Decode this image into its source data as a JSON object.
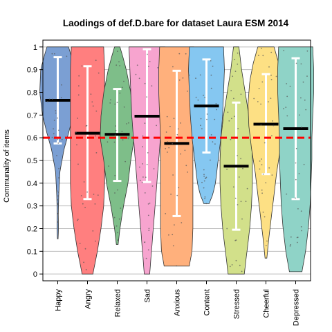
{
  "chart_data": {
    "type": "violin",
    "title": "Laodings of def.D.bare for dataset Laura ESM 2014",
    "xlabel": "",
    "ylabel": "Communality of items",
    "ylim": [
      -0.03,
      1.03
    ],
    "yticks": [
      "0",
      "0.1",
      "0.2",
      "0.3",
      "0.4",
      "0.5",
      "0.6",
      "0.7",
      "0.8",
      "0.9",
      "1"
    ],
    "grid": true,
    "reference_line": {
      "value": 0.6,
      "color": "#ff0000",
      "style": "dashed"
    },
    "categories": [
      "Happy",
      "Angry",
      "Relaxed",
      "Sad",
      "Anxious",
      "Content",
      "Stressed",
      "Cheerful",
      "Depressed"
    ],
    "series": [
      {
        "category": "Happy",
        "color": "#7b9fd3",
        "mean": 0.765,
        "sd_low": 0.575,
        "sd_high": 0.955,
        "min": 0.155,
        "max": 1.0,
        "profile": [
          [
            0.155,
            0.02
          ],
          [
            0.2,
            0.04
          ],
          [
            0.27,
            0.03
          ],
          [
            0.35,
            0.06
          ],
          [
            0.45,
            0.12
          ],
          [
            0.55,
            0.35
          ],
          [
            0.62,
            0.6
          ],
          [
            0.7,
            0.85
          ],
          [
            0.8,
            1.0
          ],
          [
            0.9,
            0.95
          ],
          [
            0.96,
            0.75
          ],
          [
            1.0,
            0.6
          ]
        ]
      },
      {
        "category": "Angry",
        "color": "#ff7f7f",
        "mean": 0.62,
        "sd_low": 0.33,
        "sd_high": 0.915,
        "min": 0.0,
        "max": 1.0,
        "profile": [
          [
            0.0,
            0.3
          ],
          [
            0.1,
            0.55
          ],
          [
            0.2,
            0.75
          ],
          [
            0.3,
            0.9
          ],
          [
            0.4,
            0.95
          ],
          [
            0.5,
            0.95
          ],
          [
            0.6,
            0.95
          ],
          [
            0.7,
            0.95
          ],
          [
            0.8,
            0.95
          ],
          [
            0.9,
            0.95
          ],
          [
            1.0,
            0.9
          ]
        ]
      },
      {
        "category": "Relaxed",
        "color": "#7ebe89",
        "mean": 0.615,
        "sd_low": 0.41,
        "sd_high": 0.815,
        "min": 0.13,
        "max": 1.0,
        "profile": [
          [
            0.13,
            0.05
          ],
          [
            0.2,
            0.15
          ],
          [
            0.3,
            0.35
          ],
          [
            0.4,
            0.6
          ],
          [
            0.5,
            0.75
          ],
          [
            0.6,
            0.95
          ],
          [
            0.7,
            0.9
          ],
          [
            0.8,
            0.75
          ],
          [
            0.9,
            0.5
          ],
          [
            0.96,
            0.3
          ],
          [
            1.0,
            0.15
          ]
        ]
      },
      {
        "category": "Sad",
        "color": "#f7a4cf",
        "mean": 0.695,
        "sd_low": 0.405,
        "sd_high": 0.99,
        "min": 0.0,
        "max": 1.0,
        "profile": [
          [
            0.0,
            0.15
          ],
          [
            0.1,
            0.25
          ],
          [
            0.2,
            0.35
          ],
          [
            0.3,
            0.45
          ],
          [
            0.4,
            0.55
          ],
          [
            0.5,
            0.65
          ],
          [
            0.6,
            0.75
          ],
          [
            0.7,
            0.85
          ],
          [
            0.8,
            0.9
          ],
          [
            0.9,
            0.95
          ],
          [
            1.0,
            1.0
          ]
        ]
      },
      {
        "category": "Anxious",
        "color": "#ffb07c",
        "mean": 0.575,
        "sd_low": 0.255,
        "sd_high": 0.895,
        "min": 0.035,
        "max": 1.0,
        "profile": [
          [
            0.035,
            0.7
          ],
          [
            0.1,
            0.85
          ],
          [
            0.2,
            0.9
          ],
          [
            0.3,
            0.9
          ],
          [
            0.4,
            0.9
          ],
          [
            0.5,
            0.9
          ],
          [
            0.6,
            0.9
          ],
          [
            0.7,
            0.95
          ],
          [
            0.8,
            1.0
          ],
          [
            0.9,
            1.0
          ],
          [
            1.0,
            0.95
          ]
        ]
      },
      {
        "category": "Content",
        "color": "#85c7f1",
        "mean": 0.74,
        "sd_low": 0.535,
        "sd_high": 0.945,
        "min": 0.31,
        "max": 1.0,
        "profile": [
          [
            0.31,
            0.15
          ],
          [
            0.35,
            0.35
          ],
          [
            0.4,
            0.5
          ],
          [
            0.5,
            0.65
          ],
          [
            0.6,
            0.8
          ],
          [
            0.7,
            0.9
          ],
          [
            0.8,
            0.95
          ],
          [
            0.9,
            1.0
          ],
          [
            1.0,
            0.95
          ]
        ]
      },
      {
        "category": "Stressed",
        "color": "#d2e08a",
        "mean": 0.475,
        "sd_low": 0.195,
        "sd_high": 0.755,
        "min": 0.0,
        "max": 1.0,
        "profile": [
          [
            0.0,
            0.45
          ],
          [
            0.1,
            0.6
          ],
          [
            0.2,
            0.75
          ],
          [
            0.3,
            0.85
          ],
          [
            0.4,
            0.9
          ],
          [
            0.5,
            0.9
          ],
          [
            0.6,
            0.85
          ],
          [
            0.7,
            0.7
          ],
          [
            0.8,
            0.5
          ],
          [
            0.9,
            0.3
          ],
          [
            1.0,
            0.15
          ]
        ]
      },
      {
        "category": "Cheerful",
        "color": "#fde084",
        "mean": 0.66,
        "sd_low": 0.44,
        "sd_high": 0.88,
        "min": 0.07,
        "max": 1.0,
        "profile": [
          [
            0.07,
            0.05
          ],
          [
            0.15,
            0.15
          ],
          [
            0.25,
            0.3
          ],
          [
            0.35,
            0.45
          ],
          [
            0.45,
            0.6
          ],
          [
            0.55,
            0.8
          ],
          [
            0.65,
            0.95
          ],
          [
            0.75,
            1.0
          ],
          [
            0.85,
            0.9
          ],
          [
            0.93,
            0.7
          ],
          [
            1.0,
            0.45
          ]
        ]
      },
      {
        "category": "Depressed",
        "color": "#8fd3c7",
        "mean": 0.64,
        "sd_low": 0.33,
        "sd_high": 0.95,
        "min": 0.01,
        "max": 1.0,
        "profile": [
          [
            0.01,
            0.35
          ],
          [
            0.1,
            0.55
          ],
          [
            0.2,
            0.7
          ],
          [
            0.3,
            0.8
          ],
          [
            0.4,
            0.85
          ],
          [
            0.5,
            0.9
          ],
          [
            0.6,
            0.9
          ],
          [
            0.7,
            0.95
          ],
          [
            0.8,
            1.0
          ],
          [
            0.9,
            1.0
          ],
          [
            1.0,
            0.95
          ]
        ]
      }
    ]
  }
}
